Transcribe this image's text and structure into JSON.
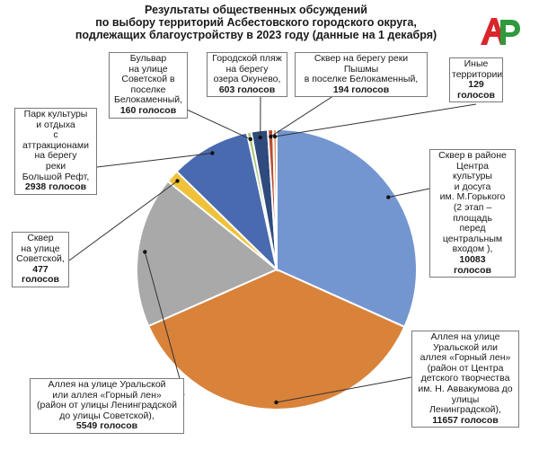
{
  "title_lines": [
    "Результаты общественных обсуждений",
    "по выбору территорий Асбестовского городского округа,",
    "подлежащих благоустройству в 2023 году (данные на 1 декабря)"
  ],
  "logo": {
    "text": "АР",
    "color_a": "#d9262c",
    "color_r": "#2e9a3c"
  },
  "chart_data": {
    "type": "pie",
    "title": "Результаты общественных обсуждений по выбору территорий Асбестовского городского округа, подлежащих благоустройству в 2023 году (данные на 1 декабря)",
    "unit": "голосов",
    "slices": [
      {
        "label": "Сквер в районе\nЦентра\nкультуры\nи досуга\nим. М.Горького\n(2 этап –\nплощадь\nперед\nцентральным\nвходом ),",
        "value": 10083,
        "value_text": "10083",
        "unit_text": "голосов",
        "color": "#7396d0"
      },
      {
        "label": "Аллея на улице\nУральской  или\nаллея «Горный лен»\n(район  от Центра\nдетского творчества\nим. Н. Аввакумова до\nулицы\nЛенинградской),",
        "value": 11657,
        "value_text": "11657",
        "unit_text": "голосов",
        "color": "#d9823a"
      },
      {
        "label": "Аллея на улице Уральской\nили аллея «Горный лен»\n(район от улицы Ленинградской\nдо улицы Советской),",
        "value": 5549,
        "value_text": "5549",
        "unit_text": "голосов",
        "color": "#a9a9a9"
      },
      {
        "label": "Сквер\nна улице\nСоветской,",
        "value": 477,
        "value_text": "477",
        "unit_text": "голосов",
        "color": "#f0c23a"
      },
      {
        "label": "Парк культуры\nи отдыха\nс\nаттракционами\nна берегу\nреки\nБольшой Рефт,",
        "value": 2938,
        "value_text": "2938",
        "unit_text": "голосов",
        "color": "#4a6aaf"
      },
      {
        "label": "Бульвар\nна улице\nСоветской в\nпоселке\nБелокаменный,",
        "value": 160,
        "value_text": "160",
        "unit_text": "голосов",
        "color": "#a6c77d"
      },
      {
        "label": "Городской пляж\nна берегу\nозера Окунево,",
        "value": 603,
        "value_text": "603",
        "unit_text": "голосов",
        "color": "#2f4a7c"
      },
      {
        "label": "Сквер на берегу реки Пышмы\nв поселке Белокаменный,",
        "value": 194,
        "value_text": "194",
        "unit_text": "голосов",
        "color": "#b84c30"
      },
      {
        "label": "Иные\nтерритории",
        "value": 129,
        "value_text": "129",
        "unit_text": "голосов",
        "color": "#ea9a66"
      }
    ]
  }
}
